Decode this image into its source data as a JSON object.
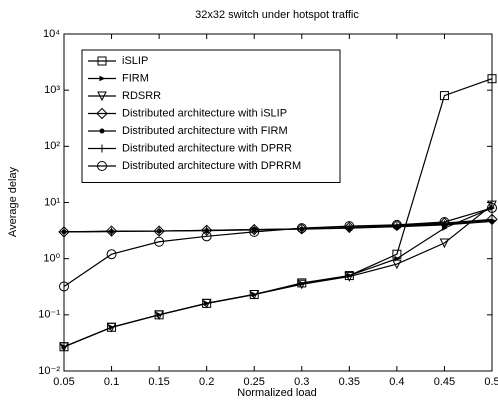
{
  "chart_data": {
    "type": "line",
    "title": "32x32 switch under hotspot traffic",
    "x_label": "Normalized load",
    "y_label": "Average delay",
    "log_y": true,
    "grid": false,
    "legend": "upper left",
    "x": [
      0.05,
      0.1,
      0.15,
      0.2,
      0.25,
      0.3,
      0.35,
      0.4,
      0.45,
      0.5
    ],
    "xlim": [
      0.05,
      0.5
    ],
    "xticks": [
      0.05,
      0.1,
      0.15,
      0.2,
      0.25,
      0.3,
      0.35,
      0.4,
      0.45,
      0.5
    ],
    "ylim": [
      0.01,
      10000
    ],
    "yticks": [
      {
        "value": 0.01,
        "label": "10⁻²"
      },
      {
        "value": 0.1,
        "label": "10⁻¹"
      },
      {
        "value": 1,
        "label": "10⁰"
      },
      {
        "value": 10,
        "label": "10¹"
      },
      {
        "value": 100,
        "label": "10²"
      },
      {
        "value": 1000,
        "label": "10³"
      },
      {
        "value": 10000,
        "label": "10⁴"
      }
    ],
    "series": [
      {
        "name": "iSLIP",
        "color": "#000000",
        "marker": "square",
        "values": [
          0.027,
          0.06,
          0.1,
          0.16,
          0.23,
          0.37,
          0.5,
          1.2,
          800,
          1600
        ]
      },
      {
        "name": "FIRM",
        "color": "#000000",
        "marker": "point",
        "values": [
          0.027,
          0.06,
          0.1,
          0.16,
          0.23,
          0.36,
          0.5,
          1.0,
          3.5,
          8
        ]
      },
      {
        "name": "RDSRR",
        "color": "#000000",
        "marker": "triangle-down",
        "values": [
          0.027,
          0.06,
          0.1,
          0.16,
          0.23,
          0.35,
          0.48,
          0.8,
          1.9,
          9
        ]
      },
      {
        "name": "Distributed architecture with iSLIP",
        "color": "#000000",
        "marker": "diamond",
        "values": [
          3.0,
          3.1,
          3.1,
          3.2,
          3.3,
          3.4,
          3.6,
          3.9,
          4.3,
          5.0
        ]
      },
      {
        "name": "Distributed architecture with FIRM",
        "color": "#000000",
        "marker": "star",
        "values": [
          3.0,
          3.05,
          3.1,
          3.15,
          3.25,
          3.35,
          3.5,
          3.7,
          4.0,
          4.6
        ]
      },
      {
        "name": "Distributed architecture with DPRR",
        "color": "#000000",
        "marker": "plus",
        "values": [
          3.0,
          3.05,
          3.1,
          3.2,
          3.3,
          3.4,
          3.55,
          3.8,
          4.1,
          4.8
        ]
      },
      {
        "name": "Distributed architecture with DPRRM",
        "color": "#000000",
        "marker": "circle",
        "values": [
          0.32,
          1.2,
          2.0,
          2.5,
          3.0,
          3.5,
          3.8,
          4.0,
          4.5,
          8
        ]
      }
    ]
  }
}
